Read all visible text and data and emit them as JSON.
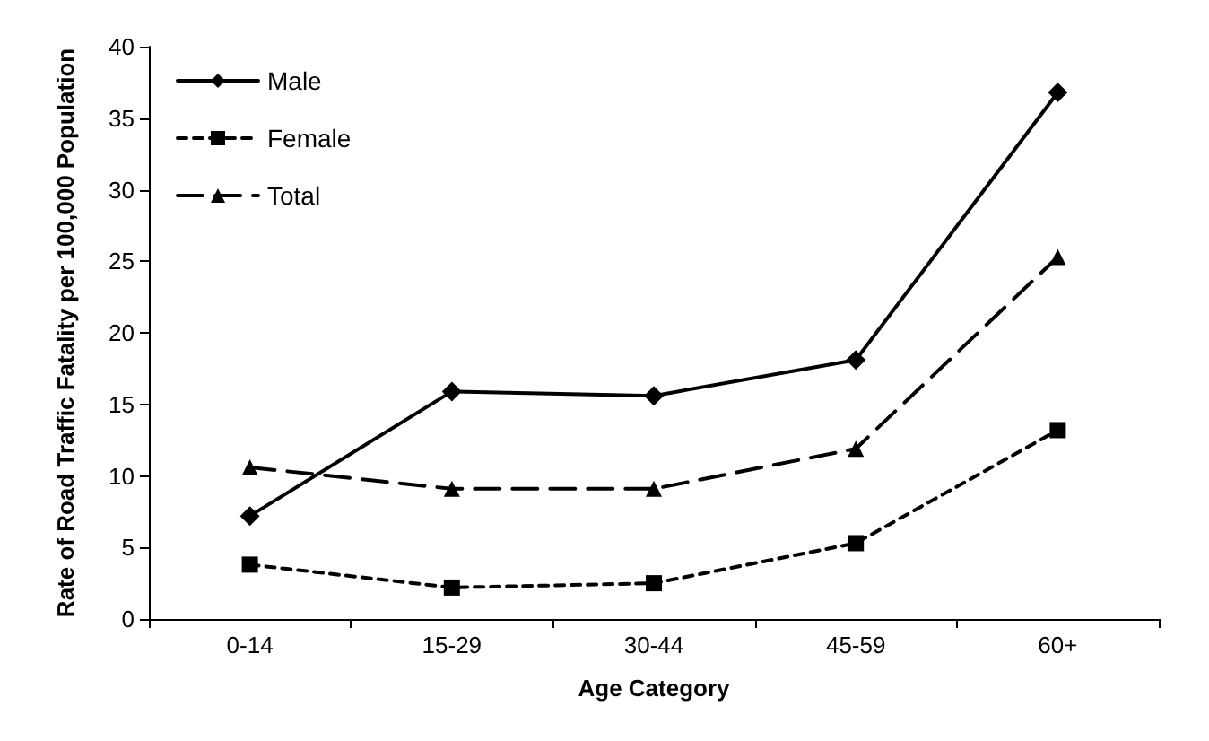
{
  "chart_data": {
    "type": "line",
    "xlabel": "Age Category",
    "ylabel": "Rate of Road Traffic Fatality per 100,000 Population",
    "categories": [
      "0-14",
      "15-29",
      "30-44",
      "45-59",
      "60+"
    ],
    "series": [
      {
        "name": "Male",
        "color": "#000000",
        "marker": "diamond",
        "line_style": "solid",
        "values": [
          7.2,
          15.9,
          15.6,
          18.1,
          36.8
        ]
      },
      {
        "name": "Female",
        "color": "#000000",
        "marker": "square",
        "line_style": "dotted",
        "values": [
          3.8,
          2.2,
          2.5,
          5.3,
          13.2
        ]
      },
      {
        "name": "Total",
        "color": "#000000",
        "marker": "triangle",
        "line_style": "dashed",
        "values": [
          10.6,
          9.1,
          9.1,
          11.9,
          25.3
        ]
      }
    ],
    "ylim": [
      0,
      40
    ],
    "yticks": [
      0,
      5,
      10,
      15,
      20,
      25,
      30,
      35,
      40
    ],
    "grid": false,
    "legend": "top left"
  }
}
